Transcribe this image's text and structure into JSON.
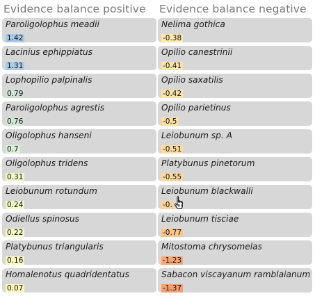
{
  "positive": {
    "title": "Evidence balance positive",
    "items": [
      {
        "name": "Paroligolophus meadii",
        "value": "1.42",
        "color": "#a6c8e4"
      },
      {
        "name": "Lacinius ephippiatus",
        "value": "1.31",
        "color": "#aacbe3"
      },
      {
        "name": "Lophopilio palpinalis",
        "value": "0.79",
        "color": "#cfe2d6"
      },
      {
        "name": "Paroligolophus agrestis",
        "value": "0.76",
        "color": "#d3e6d4"
      },
      {
        "name": "Oligolophus hanseni",
        "value": "0.7",
        "color": "#dbeed7"
      },
      {
        "name": "Oligolophus tridens",
        "value": "0.31",
        "color": "#f0f6c8"
      },
      {
        "name": "Leiobunum rotundum",
        "value": "0.24",
        "color": "#f3f8c4"
      },
      {
        "name": "Odiellus spinosus",
        "value": "0.22",
        "color": "#f4f8c2"
      },
      {
        "name": "Platybunus triangularis",
        "value": "0.16",
        "color": "#f7f8bf"
      },
      {
        "name": "Homalenotus quadridentatus",
        "value": "0.07",
        "color": "#fbf7bb"
      }
    ]
  },
  "negative": {
    "title": "Evidence balance negative",
    "items": [
      {
        "name": "Nelima gothica",
        "value": "-0.38",
        "color": "#fde7aa"
      },
      {
        "name": "Opilio canestrinii",
        "value": "-0.41",
        "color": "#fde5a7"
      },
      {
        "name": "Opilio saxatilis",
        "value": "-0.42",
        "color": "#fde4a6"
      },
      {
        "name": "Opilio parietinus",
        "value": "-0.5",
        "color": "#fddfa0"
      },
      {
        "name": "Leiobunum sp. A",
        "value": "-0.51",
        "color": "#fcdd9f"
      },
      {
        "name": "Platybunus pinetorum",
        "value": "-0.55",
        "color": "#fcd99b"
      },
      {
        "name": "Leiobunum blackwalli",
        "value": "-0.",
        "color": "#fcd49a"
      },
      {
        "name": "Leiobunum tisciae",
        "value": "-0.77",
        "color": "#fbc58c"
      },
      {
        "name": "Mitostoma chrysomelas",
        "value": "-1.23",
        "color": "#f8a673"
      },
      {
        "name": "Sabacon viscayanum ramblaianum",
        "value": "-1.37",
        "color": "#f69f6e"
      }
    ]
  }
}
